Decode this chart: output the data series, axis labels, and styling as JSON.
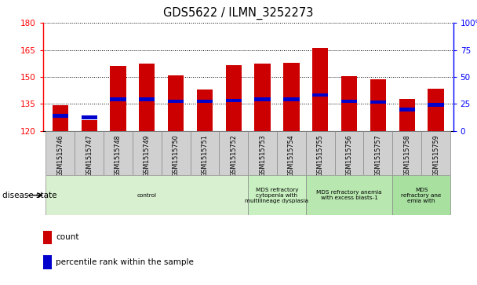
{
  "title": "GDS5622 / ILMN_3252273",
  "samples": [
    "GSM1515746",
    "GSM1515747",
    "GSM1515748",
    "GSM1515749",
    "GSM1515750",
    "GSM1515751",
    "GSM1515752",
    "GSM1515753",
    "GSM1515754",
    "GSM1515755",
    "GSM1515756",
    "GSM1515757",
    "GSM1515758",
    "GSM1515759"
  ],
  "count_values": [
    134.5,
    126.0,
    156.0,
    157.5,
    150.8,
    143.0,
    156.5,
    157.5,
    158.0,
    166.0,
    150.5,
    148.5,
    138.0,
    143.5
  ],
  "percentile_values": [
    128.5,
    127.5,
    137.5,
    137.5,
    136.5,
    136.5,
    137.0,
    137.5,
    137.5,
    140.0,
    136.5,
    136.0,
    132.0,
    134.5
  ],
  "y_min": 120,
  "y_max": 180,
  "y_ticks": [
    120,
    135,
    150,
    165,
    180
  ],
  "y2_ticks": [
    0,
    25,
    50,
    75,
    100
  ],
  "y2_ticklabels": [
    "0",
    "25",
    "50",
    "75",
    "100%"
  ],
  "bar_color": "#cc0000",
  "pct_color": "#0000cc",
  "disease_groups": [
    {
      "label": "control",
      "start": 0,
      "end": 7,
      "color": "#d8f0d0"
    },
    {
      "label": "MDS refractory\ncytopenia with\nmultilineage dysplasia",
      "start": 7,
      "end": 9,
      "color": "#c8f0c0"
    },
    {
      "label": "MDS refractory anemia\nwith excess blasts-1",
      "start": 9,
      "end": 12,
      "color": "#b8e8b0"
    },
    {
      "label": "MDS\nrefractory ane\nemia with",
      "start": 12,
      "end": 14,
      "color": "#a8e0a0"
    }
  ],
  "legend_count_label": "count",
  "legend_pct_label": "percentile rank within the sample",
  "disease_state_label": "disease state",
  "bar_width": 0.55,
  "bg_color": "#ffffff",
  "sample_box_color": "#d0d0d0",
  "grid_color": "#000000",
  "spine_bottom_color": "#000000"
}
